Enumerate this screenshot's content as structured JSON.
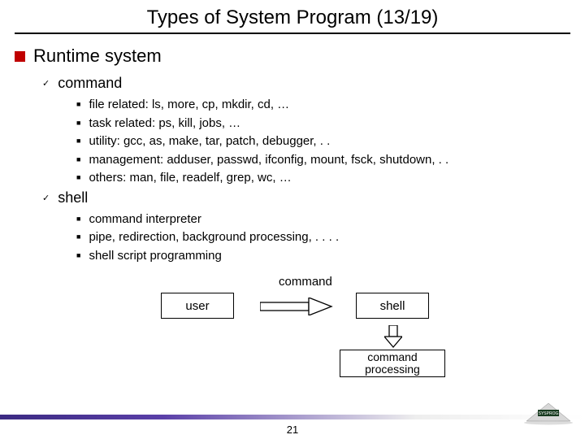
{
  "title": "Types of System Program (13/19)",
  "page_number": "21",
  "heading": "Runtime system",
  "sections": [
    {
      "label": "command",
      "items": [
        "file related: ls, more, cp, mkdir, cd, …",
        "task related: ps, kill, jobs, …",
        "utility: gcc, as, make, tar, patch, debugger, . .",
        "management: adduser, passwd, ifconfig, mount, fsck, shutdown, . .",
        "others: man, file, readelf, grep, wc, …"
      ]
    },
    {
      "label": "shell",
      "items": [
        "command interpreter",
        "pipe, redirection, background processing, . . . .",
        "shell script programming"
      ]
    }
  ],
  "diagram": {
    "command_label": "command",
    "user_box": "user",
    "shell_box": "shell",
    "cmd_proc_box": "command\nprocessing"
  },
  "colors": {
    "accent_red": "#c00000",
    "footer_purple": "#3b2a82"
  }
}
